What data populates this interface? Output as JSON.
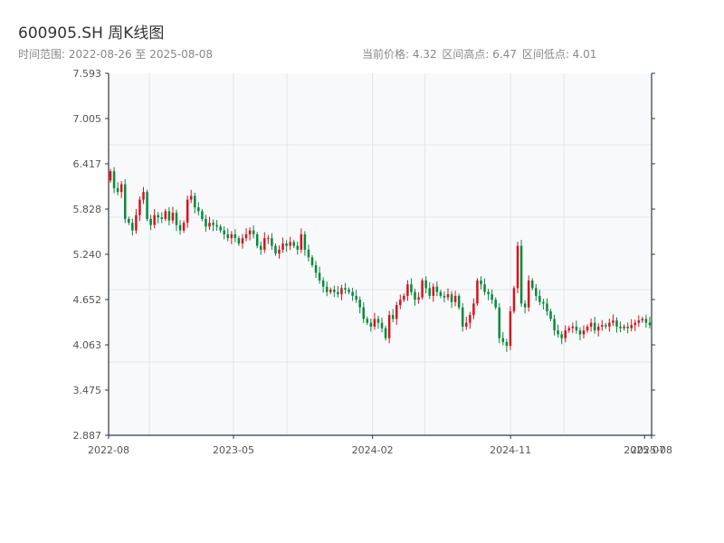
{
  "header": {
    "title": "600905.SH 周K线图",
    "subtitle": "时间范围: 2022-08-26 至 2025-08-08",
    "stats": {
      "current": "当前价格: 4.32",
      "high": "区间高点: 6.47",
      "low": "区间低点: 4.01"
    }
  },
  "colors": {
    "up": "#d6141c",
    "down": "#078a3c",
    "plot_bg": "#f8f9fb",
    "grid": "#e3e6ea",
    "axis": "#2d3748"
  },
  "chart_data": {
    "type": "candlestick",
    "title": "600905.SH 周K线图",
    "ylim": [
      2.887,
      7.593
    ],
    "y_ticks": [
      "2.887",
      "3.475",
      "4.063",
      "4.652",
      "5.240",
      "5.828",
      "6.417",
      "7.005",
      "7.593"
    ],
    "x_ticks": [
      "2022-08",
      "2023-05",
      "2024-02",
      "2024-11",
      "2025-07",
      "2025-08"
    ],
    "x_range": [
      "2022-08-26",
      "2025-08-08"
    ],
    "grid": true,
    "up_color": "red",
    "down_color": "green",
    "close": [
      6.32,
      6.1,
      6.05,
      6.15,
      5.7,
      5.65,
      5.55,
      5.75,
      5.95,
      6.05,
      5.7,
      5.62,
      5.75,
      5.72,
      5.7,
      5.8,
      5.68,
      5.78,
      5.62,
      5.55,
      5.65,
      5.95,
      6.0,
      5.85,
      5.8,
      5.7,
      5.6,
      5.65,
      5.62,
      5.6,
      5.55,
      5.5,
      5.45,
      5.5,
      5.45,
      5.38,
      5.45,
      5.5,
      5.55,
      5.5,
      5.35,
      5.3,
      5.45,
      5.45,
      5.35,
      5.25,
      5.3,
      5.38,
      5.35,
      5.4,
      5.35,
      5.3,
      5.5,
      5.3,
      5.2,
      5.1,
      5.0,
      4.9,
      4.82,
      4.75,
      4.78,
      4.75,
      4.72,
      4.8,
      4.78,
      4.75,
      4.7,
      4.65,
      4.55,
      4.4,
      4.35,
      4.3,
      4.4,
      4.35,
      4.28,
      4.15,
      4.45,
      4.4,
      4.58,
      4.65,
      4.7,
      4.85,
      4.75,
      4.65,
      4.68,
      4.9,
      4.8,
      4.7,
      4.82,
      4.75,
      4.7,
      4.68,
      4.72,
      4.62,
      4.7,
      4.55,
      4.3,
      4.35,
      4.45,
      4.6,
      4.9,
      4.85,
      4.75,
      4.72,
      4.65,
      4.55,
      4.15,
      4.1,
      4.05,
      4.5,
      4.8,
      5.35,
      4.6,
      4.55,
      4.9,
      4.8,
      4.7,
      4.62,
      4.6,
      4.5,
      4.4,
      4.25,
      4.2,
      4.15,
      4.25,
      4.28,
      4.3,
      4.25,
      4.2,
      4.25,
      4.3,
      4.35,
      4.25,
      4.3,
      4.32,
      4.3,
      4.35,
      4.38,
      4.3,
      4.28,
      4.3,
      4.28,
      4.32,
      4.35,
      4.38,
      4.4,
      4.35,
      4.32
    ]
  }
}
